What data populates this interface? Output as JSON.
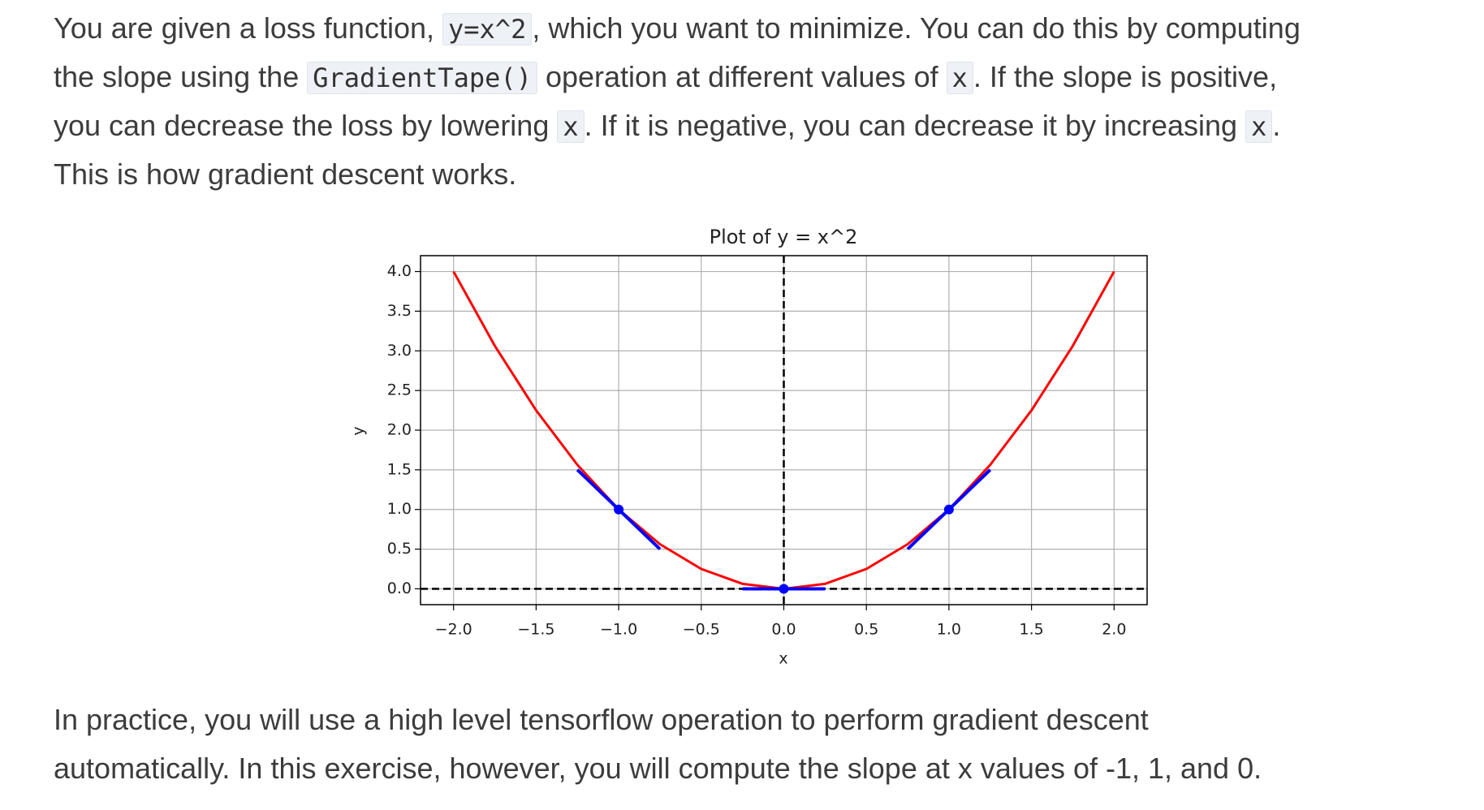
{
  "paragraphs": [
    {
      "lines": [
        [
          {
            "text": "You are given a loss function, "
          },
          {
            "code": "y=x^2"
          },
          {
            "text": ", which you want to minimize. You can do this by computing"
          }
        ],
        [
          {
            "text": "the slope using the "
          },
          {
            "code": "GradientTape()"
          },
          {
            "text": " operation at different values of "
          },
          {
            "code": "x"
          },
          {
            "text": ". If the slope is positive,"
          }
        ],
        [
          {
            "text": "you can decrease the loss by lowering "
          },
          {
            "code": "x"
          },
          {
            "text": ". If it is negative, you can decrease it by increasing "
          },
          {
            "code": "x"
          },
          {
            "text": "."
          }
        ],
        [
          {
            "text": "This is how gradient descent works."
          }
        ]
      ]
    },
    {
      "lines": [
        [
          {
            "text": "In practice, you will use a high level tensorflow operation to perform gradient descent"
          }
        ],
        [
          {
            "text": "automatically. In this exercise, however, you will compute the slope at x values of -1, 1, and 0."
          }
        ]
      ]
    }
  ],
  "chart_data": {
    "type": "line",
    "title": "Plot of y = x^2",
    "xlabel": "x",
    "ylabel": "y",
    "xlim": [
      -2.2,
      2.2
    ],
    "ylim": [
      -0.2,
      4.2
    ],
    "grid": true,
    "xticks": [
      {
        "value": -2,
        "label": "−2.0"
      },
      {
        "value": -1.5,
        "label": "−1.5"
      },
      {
        "value": -1,
        "label": "−1.0"
      },
      {
        "value": -0.5,
        "label": "−0.5"
      },
      {
        "value": 0,
        "label": "0.0"
      },
      {
        "value": 0.5,
        "label": "0.5"
      },
      {
        "value": 1,
        "label": "1.0"
      },
      {
        "value": 1.5,
        "label": "1.5"
      },
      {
        "value": 2,
        "label": "2.0"
      }
    ],
    "yticks": [
      {
        "value": 0,
        "label": "0.0"
      },
      {
        "value": 0.5,
        "label": "0.5"
      },
      {
        "value": 1,
        "label": "1.0"
      },
      {
        "value": 1.5,
        "label": "1.5"
      },
      {
        "value": 2,
        "label": "2.0"
      },
      {
        "value": 2.5,
        "label": "2.5"
      },
      {
        "value": 3,
        "label": "3.0"
      },
      {
        "value": 3.5,
        "label": "3.5"
      },
      {
        "value": 4,
        "label": "4.0"
      }
    ],
    "hlines": [
      0
    ],
    "vlines": [
      0
    ],
    "reference_color": "black",
    "series": [
      {
        "style": "line",
        "color": "red",
        "x": [
          -2,
          -1.75,
          -1.5,
          -1.25,
          -1,
          -0.75,
          -0.5,
          -0.25,
          0,
          0.25,
          0.5,
          0.75,
          1,
          1.25,
          1.5,
          1.75,
          2
        ],
        "values": [
          4,
          3.0625,
          2.25,
          1.5625,
          1,
          0.5625,
          0.25,
          0.0625,
          0,
          0.0625,
          0.25,
          0.5625,
          1,
          1.5625,
          2.25,
          3.0625,
          4
        ]
      },
      {
        "style": "line",
        "color": "blue",
        "x": [
          -1.25,
          -0.75
        ],
        "values": [
          1.5,
          0.5
        ]
      },
      {
        "style": "line",
        "color": "blue",
        "x": [
          0.75,
          1.25
        ],
        "values": [
          0.5,
          1.5
        ]
      },
      {
        "style": "line",
        "color": "blue",
        "x": [
          -0.25,
          0.25
        ],
        "values": [
          0,
          0
        ]
      },
      {
        "style": "marker",
        "color": "blue",
        "x": [
          -1,
          1,
          0
        ],
        "values": [
          1,
          1,
          0
        ]
      }
    ]
  }
}
